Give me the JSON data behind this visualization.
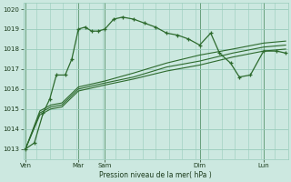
{
  "bg_color": "#cce8e0",
  "grid_color": "#99ccbb",
  "line_color": "#2d6a2d",
  "xlabel": "Pression niveau de la mer( hPa )",
  "ylim": [
    1012.5,
    1020.3
  ],
  "yticks": [
    1013,
    1014,
    1015,
    1016,
    1017,
    1018,
    1019,
    1020
  ],
  "xlim": [
    0,
    240
  ],
  "day_positions": [
    2,
    50,
    74,
    160,
    218
  ],
  "day_labels": [
    "Ven",
    "Mar",
    "Sam",
    "Dim",
    "Lun"
  ],
  "vline_positions": [
    2,
    50,
    74,
    160,
    218
  ],
  "series_straight": [
    {
      "x": [
        2,
        15,
        25,
        35,
        50,
        74,
        100,
        130,
        160,
        190,
        218,
        238
      ],
      "y": [
        1013.0,
        1014.7,
        1015.0,
        1015.1,
        1015.9,
        1016.2,
        1016.5,
        1016.9,
        1017.2,
        1017.6,
        1017.9,
        1018.0
      ]
    },
    {
      "x": [
        2,
        15,
        25,
        35,
        50,
        74,
        100,
        130,
        160,
        190,
        218,
        238
      ],
      "y": [
        1013.0,
        1014.8,
        1015.1,
        1015.2,
        1016.0,
        1016.3,
        1016.6,
        1017.1,
        1017.4,
        1017.8,
        1018.1,
        1018.2
      ]
    },
    {
      "x": [
        2,
        15,
        25,
        35,
        50,
        74,
        100,
        130,
        160,
        190,
        218,
        238
      ],
      "y": [
        1013.0,
        1014.9,
        1015.2,
        1015.3,
        1016.1,
        1016.4,
        1016.8,
        1017.3,
        1017.7,
        1018.0,
        1018.3,
        1018.4
      ]
    }
  ],
  "series_main": {
    "x": [
      2,
      10,
      18,
      24,
      30,
      38,
      44,
      50,
      56,
      62,
      68,
      74,
      82,
      90,
      100,
      110,
      120,
      130,
      140,
      150,
      160,
      170,
      178,
      188,
      196,
      206,
      218,
      230,
      238
    ],
    "y": [
      1013.0,
      1013.3,
      1014.8,
      1015.5,
      1016.7,
      1016.7,
      1017.5,
      1019.0,
      1019.1,
      1018.9,
      1018.9,
      1019.0,
      1019.5,
      1019.6,
      1019.5,
      1019.3,
      1019.1,
      1018.8,
      1018.7,
      1018.5,
      1018.2,
      1018.8,
      1017.8,
      1017.3,
      1016.6,
      1016.7,
      1017.9,
      1017.9,
      1017.8
    ]
  }
}
